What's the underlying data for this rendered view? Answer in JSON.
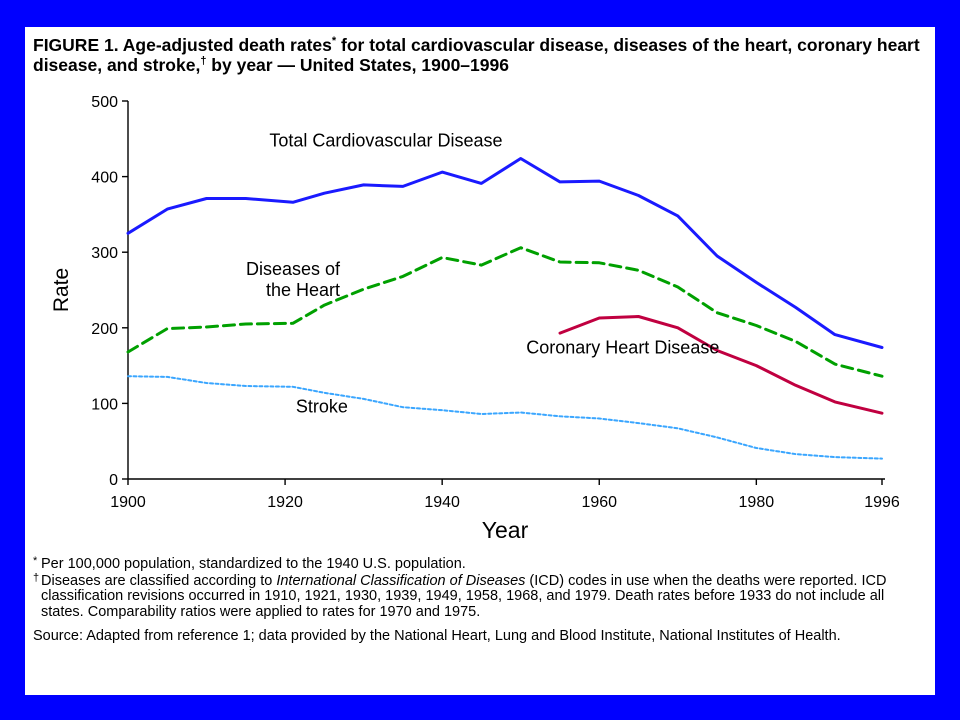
{
  "title": {
    "prefix": "FIGURE 1. Age-adjusted death rates",
    "star": "*",
    "middle": " for total cardiovascular disease, diseases of the heart, coronary heart disease, and stroke,",
    "dagger": "†",
    "suffix": " by year — United States, 1900–1996"
  },
  "chart_data": {
    "type": "line",
    "xlabel": "Year",
    "ylabel": "Rate",
    "xlim": [
      1900,
      1996
    ],
    "ylim": [
      0,
      500
    ],
    "x_ticks": [
      "1900",
      "1920",
      "1940",
      "1960",
      "1980",
      "1996"
    ],
    "y_ticks": [
      "0",
      "100",
      "200",
      "300",
      "400",
      "500"
    ],
    "grid": false,
    "legend": "none (series labeled directly on plot)",
    "series": [
      {
        "name": "Total Cardiovascular Disease",
        "color": "#1a1aff",
        "style": "solid",
        "label": [
          "Total Cardiovascular Disease"
        ],
        "points": [
          [
            1900,
            325
          ],
          [
            1905,
            357
          ],
          [
            1910,
            371
          ],
          [
            1915,
            371
          ],
          [
            1921,
            366
          ],
          [
            1925,
            378
          ],
          [
            1930,
            389
          ],
          [
            1935,
            387
          ],
          [
            1940,
            406
          ],
          [
            1945,
            391
          ],
          [
            1950,
            424
          ],
          [
            1955,
            393
          ],
          [
            1960,
            394
          ],
          [
            1965,
            375
          ],
          [
            1970,
            348
          ],
          [
            1975,
            295
          ],
          [
            1980,
            260
          ],
          [
            1985,
            227
          ],
          [
            1990,
            191
          ],
          [
            1996,
            174
          ]
        ]
      },
      {
        "name": "Diseases of the Heart",
        "color": "#00a000",
        "style": "dashed",
        "label": [
          "Diseases of",
          "the Heart"
        ],
        "points": [
          [
            1900,
            168
          ],
          [
            1905,
            199
          ],
          [
            1910,
            201
          ],
          [
            1915,
            205
          ],
          [
            1921,
            206
          ],
          [
            1925,
            230
          ],
          [
            1930,
            251
          ],
          [
            1935,
            268
          ],
          [
            1940,
            293
          ],
          [
            1945,
            283
          ],
          [
            1950,
            306
          ],
          [
            1955,
            287
          ],
          [
            1960,
            286
          ],
          [
            1965,
            276
          ],
          [
            1970,
            254
          ],
          [
            1975,
            220
          ],
          [
            1980,
            203
          ],
          [
            1985,
            182
          ],
          [
            1990,
            152
          ],
          [
            1996,
            136
          ]
        ]
      },
      {
        "name": "Coronary Heart Disease",
        "color": "#c00040",
        "style": "solid",
        "label": [
          "Coronary Heart Disease"
        ],
        "points": [
          [
            1955,
            193
          ],
          [
            1960,
            213
          ],
          [
            1965,
            215
          ],
          [
            1970,
            200
          ],
          [
            1975,
            170
          ],
          [
            1980,
            150
          ],
          [
            1985,
            124
          ],
          [
            1990,
            102
          ],
          [
            1996,
            87
          ]
        ]
      },
      {
        "name": "Stroke",
        "color": "#3aa6ff",
        "style": "dotted",
        "label": [
          "Stroke"
        ],
        "points": [
          [
            1900,
            136
          ],
          [
            1905,
            135
          ],
          [
            1910,
            127
          ],
          [
            1915,
            123
          ],
          [
            1921,
            122
          ],
          [
            1925,
            114
          ],
          [
            1930,
            106
          ],
          [
            1935,
            95
          ],
          [
            1940,
            91
          ],
          [
            1945,
            86
          ],
          [
            1950,
            88
          ],
          [
            1955,
            83
          ],
          [
            1960,
            80
          ],
          [
            1965,
            74
          ],
          [
            1970,
            67
          ],
          [
            1975,
            55
          ],
          [
            1980,
            41
          ],
          [
            1985,
            33
          ],
          [
            1990,
            29
          ],
          [
            1996,
            27
          ]
        ]
      }
    ]
  },
  "notes": {
    "note1_mark": "*",
    "note1": "Per 100,000 population, standardized to the 1940 U.S. population.",
    "note2_mark": "†",
    "note2_pre": "Diseases are classified according to ",
    "note2_italic": "International Classification of Diseases",
    "note2_post": " (ICD) codes in use when the deaths were reported. ICD classification revisions occurred in 1910, 1921, 1930, 1939, 1949, 1958, 1968, and 1979. Death rates before 1933 do not include all states. Comparability ratios were applied to rates for 1970 and 1975.",
    "source": "Source: Adapted from reference 1; data provided by the National Heart, Lung and Blood Institute, National Institutes of Health."
  }
}
